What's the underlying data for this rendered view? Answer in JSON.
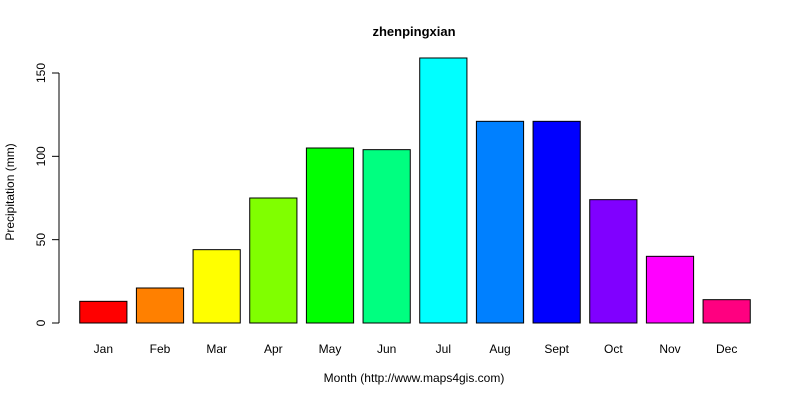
{
  "chart_data": {
    "type": "bar",
    "title": "zhenpingxian",
    "xlabel": "Month (http://www.maps4gis.com)",
    "ylabel": "Precipitation (mm)",
    "categories": [
      "Jan",
      "Feb",
      "Mar",
      "Apr",
      "May",
      "Jun",
      "Jul",
      "Aug",
      "Sept",
      "Oct",
      "Nov",
      "Dec"
    ],
    "values": [
      13,
      21,
      44,
      75,
      105,
      104,
      159,
      121,
      121,
      74,
      40,
      14
    ],
    "colors": [
      "#FF0000",
      "#FF8000",
      "#FFFF00",
      "#80FF00",
      "#00FF00",
      "#00FF80",
      "#00FFFF",
      "#0080FF",
      "#0000FF",
      "#8000FF",
      "#FF00FF",
      "#FF0080"
    ],
    "ylim": [
      0,
      165
    ],
    "yticks": [
      0,
      50,
      100,
      150
    ],
    "ytick_labels": [
      "0",
      "50",
      "100",
      "150"
    ],
    "grid": false,
    "legend": "none"
  }
}
